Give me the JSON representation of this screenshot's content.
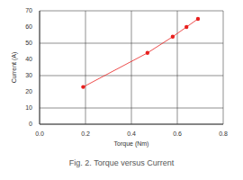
{
  "chart_data": {
    "type": "line",
    "title": "Fig. 2. Torque versus Current",
    "x_label": "Torque (Nm)",
    "y_label": "Current (A)",
    "x": [
      0.19,
      0.47,
      0.58,
      0.64,
      0.69
    ],
    "values": [
      23,
      44,
      54,
      60,
      65
    ],
    "color": "#e8201e",
    "marker": "circle",
    "line_style": "solid",
    "xlim": [
      0,
      0.8
    ],
    "xticks": [
      {
        "value": 0,
        "label": "0.0"
      },
      0.2,
      0.4,
      0.6,
      0.8
    ],
    "ylim": [
      0,
      70
    ],
    "yticks": [
      0,
      10,
      20,
      30,
      40,
      50,
      60,
      70
    ],
    "grid": true
  }
}
